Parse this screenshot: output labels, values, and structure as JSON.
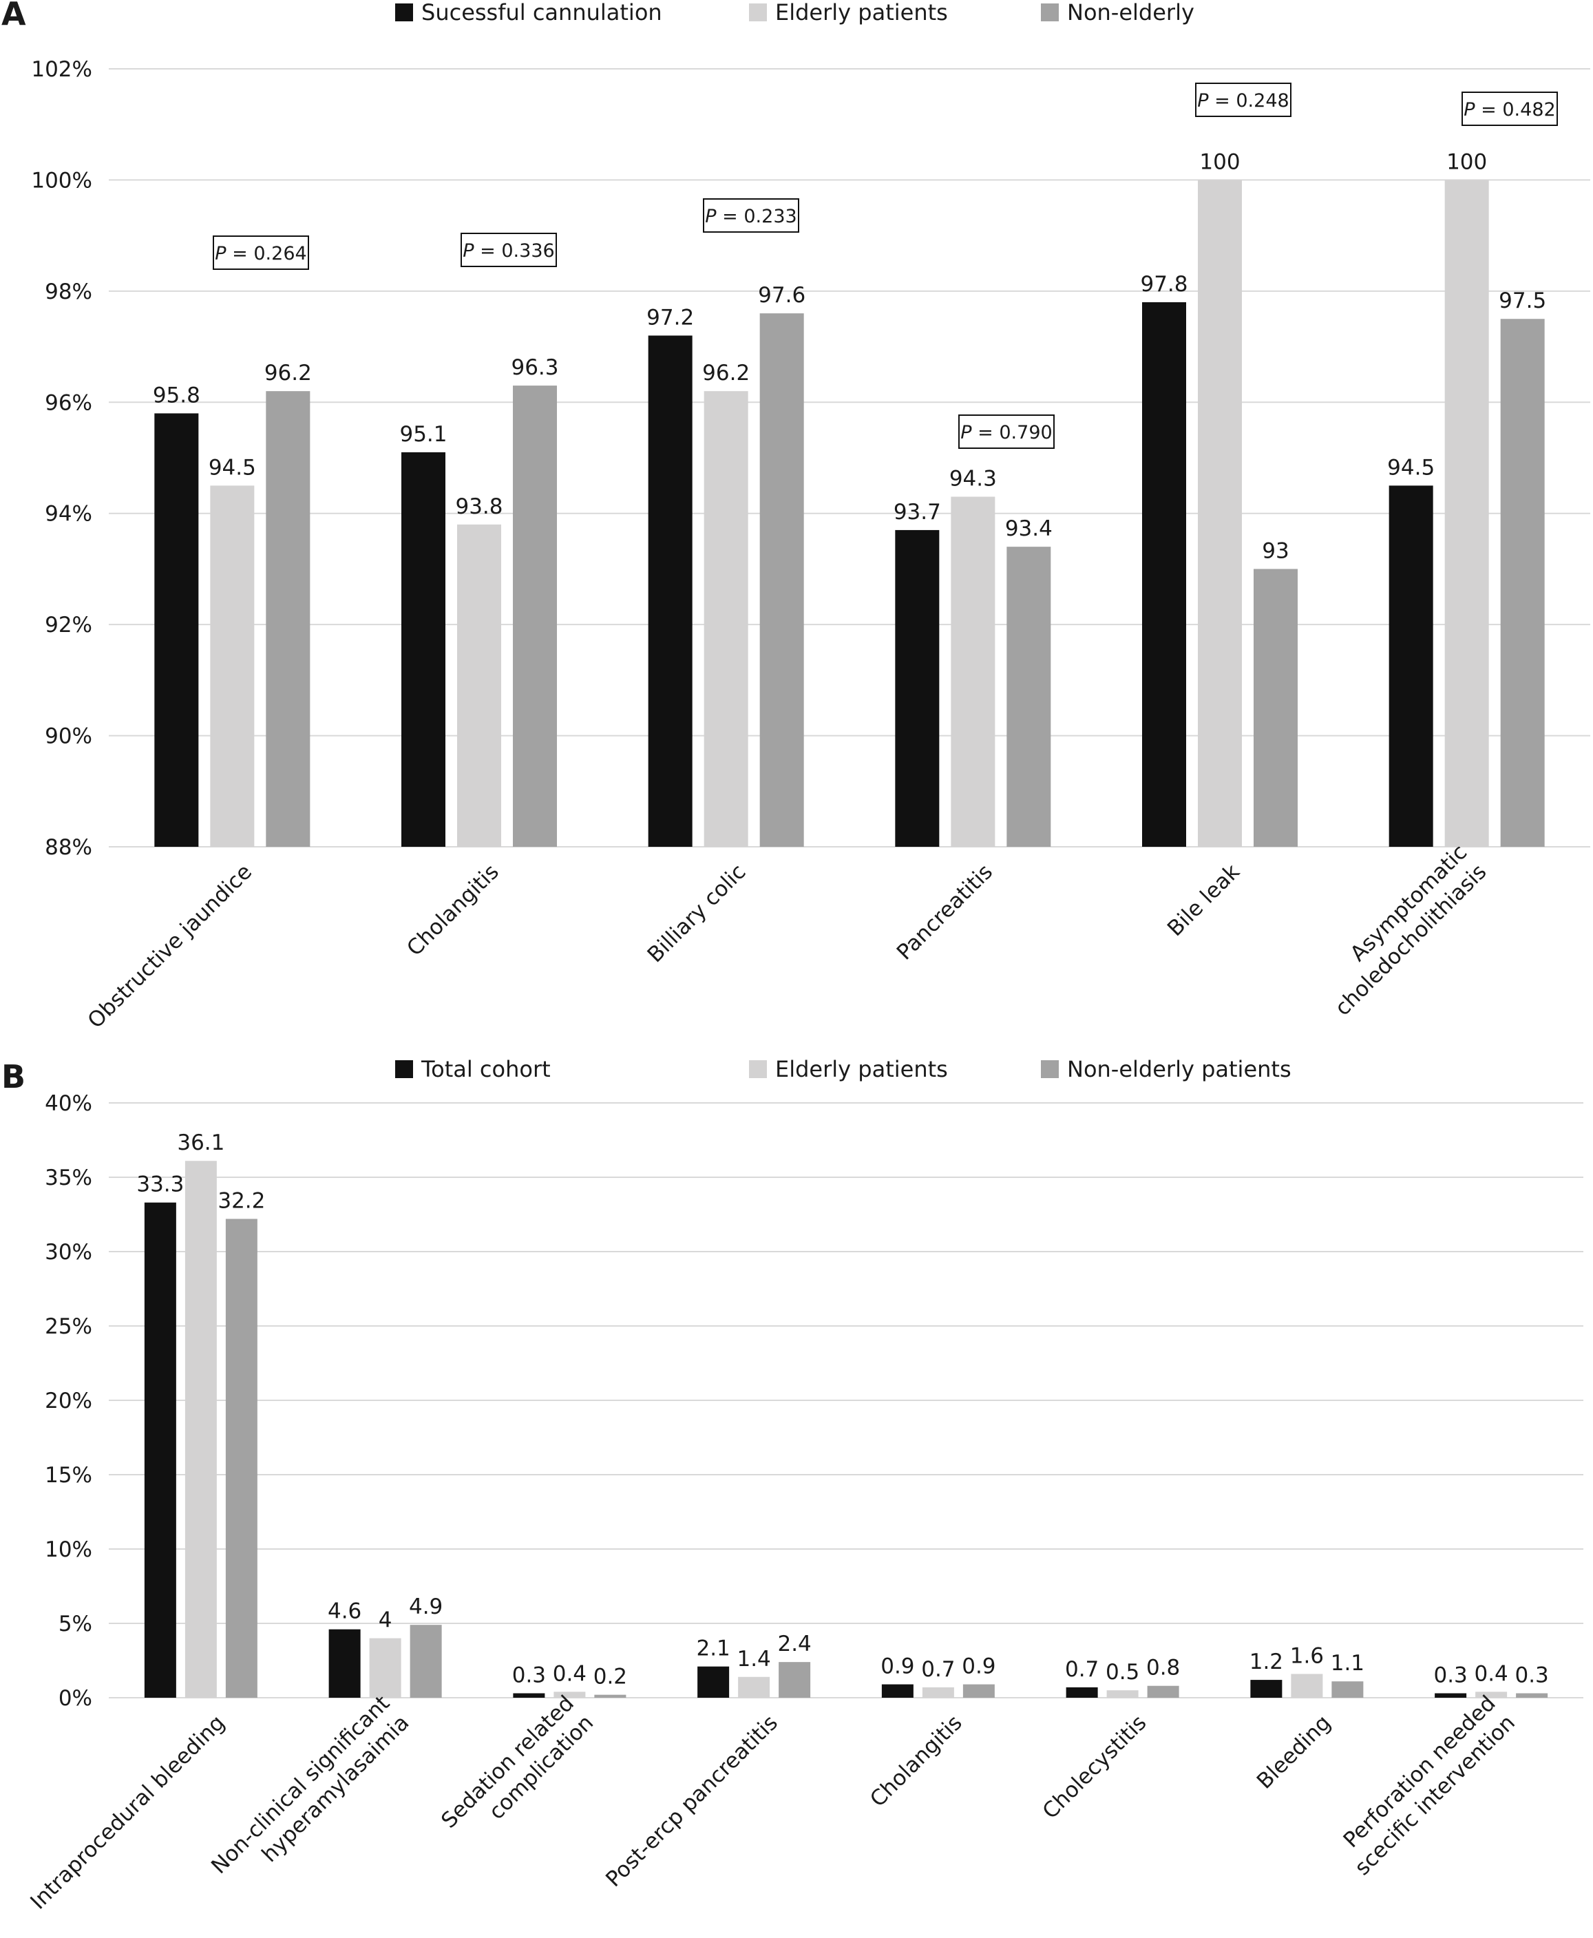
{
  "panels": [
    {
      "label": "A",
      "legend": [
        "Sucessful cannulation",
        "Elderly patients",
        "Non-elderly"
      ],
      "p_values": [
        "0.264",
        "0.336",
        "0.233",
        "0.790",
        "0.248",
        "0.482"
      ],
      "p_prefix": "P",
      "p_equals": " = "
    },
    {
      "label": "B",
      "legend": [
        "Total cohort",
        "Elderly patients",
        "Non-elderly patients"
      ]
    }
  ],
  "colors": {
    "series1": "#111111",
    "series2": "#d3d2d2",
    "series3": "#a2a2a2",
    "grid": "#d9d9d9"
  },
  "chart_data": [
    {
      "type": "bar",
      "categories": [
        "Obstructive jaundice",
        "Cholangitis",
        "Billiary colic",
        "Pancreatitis",
        "Bile leak",
        "Asymptomatic choledocholithiasis"
      ],
      "category_lines": [
        [
          "Obstructive jaundice"
        ],
        [
          "Cholangitis"
        ],
        [
          "Billiary colic"
        ],
        [
          "Pancreatitis"
        ],
        [
          "Bile leak"
        ],
        [
          "Asymptomatic",
          "choledocholithiasis"
        ]
      ],
      "series": [
        {
          "name": "Sucessful cannulation",
          "values": [
            95.8,
            95.1,
            97.2,
            93.7,
            97.8,
            94.5
          ],
          "labels": [
            "95.8",
            "95.1",
            "97.2",
            "93.7",
            "97.8",
            "94.5"
          ]
        },
        {
          "name": "Elderly patients",
          "values": [
            94.5,
            93.8,
            96.2,
            94.3,
            100,
            100
          ],
          "labels": [
            "94.5",
            "93.8",
            "96.2",
            "94.3",
            "100",
            "100"
          ]
        },
        {
          "name": "Non-elderly",
          "values": [
            96.2,
            96.3,
            97.6,
            93.4,
            93,
            97.5
          ],
          "labels": [
            "96.2",
            "96.3",
            "97.6",
            "93.4",
            "93",
            "97.5"
          ]
        }
      ],
      "ylim": [
        88,
        102
      ],
      "yticks": [
        88,
        90,
        92,
        94,
        96,
        98,
        100,
        102
      ],
      "ytick_labels": [
        "88%",
        "90%",
        "92%",
        "94%",
        "96%",
        "98%",
        "100%",
        "102%"
      ],
      "grid": true,
      "legend_position": "top"
    },
    {
      "type": "bar",
      "categories": [
        "Intraprocedural bleeding",
        "Non-clinical significant hyperamylasaimia",
        "Sedation related complication",
        "Post-ercp pancreatitis",
        "Cholangitis",
        "Cholecystitis",
        "Bleeding",
        "Perforation needed scecific intervention"
      ],
      "category_lines": [
        [
          "Intraprocedural bleeding"
        ],
        [
          "Non-clinical significant",
          "hyperamylasaimia"
        ],
        [
          "Sedation related",
          "complication"
        ],
        [
          "Post-ercp pancreatitis"
        ],
        [
          "Cholangitis"
        ],
        [
          "Cholecystitis"
        ],
        [
          "Bleeding"
        ],
        [
          "Perforation needed",
          "scecific intervention"
        ]
      ],
      "series": [
        {
          "name": "Total cohort",
          "values": [
            33.3,
            4.6,
            0.3,
            2.1,
            0.9,
            0.7,
            1.2,
            0.3
          ],
          "labels": [
            "33.3",
            "4.6",
            "0.3",
            "2.1",
            "0.9",
            "0.7",
            "1.2",
            "0.3"
          ]
        },
        {
          "name": "Elderly patients",
          "values": [
            36.1,
            4,
            0.4,
            1.4,
            0.7,
            0.5,
            1.6,
            0.4
          ],
          "labels": [
            "36.1",
            "4",
            "0.4",
            "1.4",
            "0.7",
            "0.5",
            "1.6",
            "0.4"
          ]
        },
        {
          "name": "Non-elderly patients",
          "values": [
            32.2,
            4.9,
            0.2,
            2.4,
            0.9,
            0.8,
            1.1,
            0.3
          ],
          "labels": [
            "32.2",
            "4.9",
            "0.2",
            "2.4",
            "0.9",
            "0.8",
            "1.1",
            "0.3"
          ]
        }
      ],
      "ylim": [
        0,
        40
      ],
      "yticks": [
        0,
        5,
        10,
        15,
        20,
        25,
        30,
        35,
        40
      ],
      "ytick_labels": [
        "0%",
        "5%",
        "10%",
        "15%",
        "20%",
        "25%",
        "30%",
        "35%",
        "40%"
      ],
      "grid": true,
      "legend_position": "top"
    }
  ]
}
